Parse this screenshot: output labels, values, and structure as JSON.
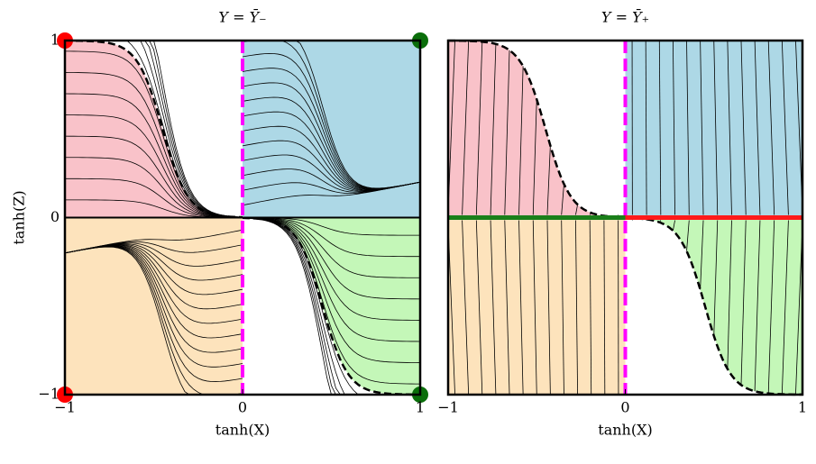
{
  "chart_data": [
    {
      "type": "streamplot",
      "title": "Y = Ȳ₋",
      "xlabel": "tanh(X)",
      "ylabel": "tanh(Z)",
      "xlim": [
        -1,
        1
      ],
      "ylim": [
        -1,
        1
      ],
      "xticks": [
        {
          "value": -1,
          "label": "−1"
        },
        0,
        1
      ],
      "yticks": [
        {
          "value": -1,
          "label": "−1"
        },
        0,
        1
      ]
    },
    {
      "type": "streamplot",
      "title": "Y = Ȳ₊",
      "xlabel": "tanh(X)",
      "xlim": [
        -1,
        1
      ],
      "ylim": [
        -1,
        1
      ],
      "xticks": [
        {
          "value": -1,
          "label": "−1"
        },
        0,
        1
      ]
    }
  ]
}
